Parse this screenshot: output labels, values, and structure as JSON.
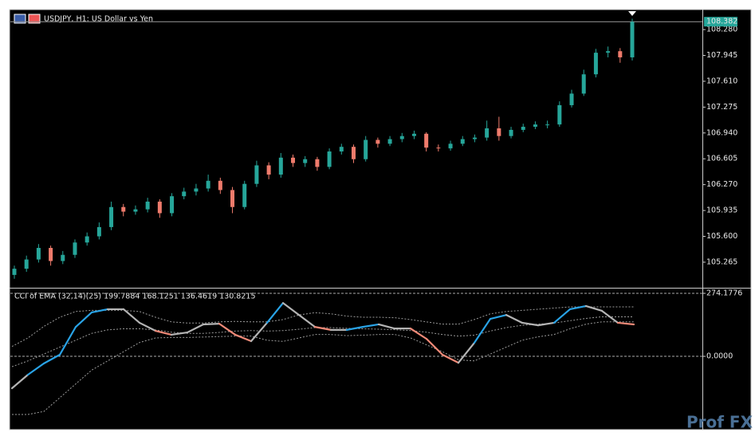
{
  "chart_data": [
    {
      "type": "candlestick",
      "title": "USDJPY, H1:  US Dollar vs Yen",
      "open": [
        105.1,
        105.18,
        105.3,
        105.45,
        105.28,
        105.36,
        105.52,
        105.6,
        105.72,
        105.98,
        105.92,
        105.95,
        106.05,
        105.9,
        106.12,
        106.18,
        106.22,
        106.32,
        106.2,
        105.98,
        106.28,
        106.52,
        106.4,
        106.62,
        106.55,
        106.6,
        106.5,
        106.7,
        106.76,
        106.6,
        106.85,
        106.8,
        106.86,
        106.9,
        106.93,
        106.75,
        106.74,
        106.8,
        106.86,
        106.88,
        107.0,
        106.9,
        106.98,
        107.02,
        107.05,
        107.05,
        107.3,
        107.45,
        107.7,
        107.98,
        108.0,
        107.92
      ],
      "high": [
        105.22,
        105.35,
        105.5,
        105.48,
        105.41,
        105.56,
        105.65,
        105.78,
        106.05,
        106.02,
        106.0,
        106.1,
        106.08,
        106.16,
        106.23,
        106.28,
        106.4,
        106.36,
        106.24,
        106.32,
        106.58,
        106.56,
        106.68,
        106.66,
        106.64,
        106.63,
        106.74,
        106.8,
        106.79,
        106.9,
        106.88,
        106.9,
        106.94,
        106.97,
        106.95,
        106.79,
        106.84,
        106.9,
        106.92,
        107.1,
        107.15,
        107.02,
        107.06,
        107.09,
        107.1,
        107.35,
        107.5,
        107.76,
        108.03,
        108.06,
        108.04,
        108.42
      ],
      "low": [
        105.05,
        105.14,
        105.26,
        105.22,
        105.24,
        105.32,
        105.48,
        105.56,
        105.68,
        105.86,
        105.88,
        105.91,
        105.84,
        105.86,
        106.08,
        106.13,
        106.18,
        106.15,
        105.9,
        105.95,
        106.24,
        106.34,
        106.36,
        106.5,
        106.5,
        106.45,
        106.47,
        106.66,
        106.55,
        106.57,
        106.75,
        106.77,
        106.82,
        106.86,
        106.7,
        106.7,
        106.71,
        106.77,
        106.82,
        106.84,
        106.84,
        106.87,
        106.95,
        106.99,
        107.0,
        107.02,
        107.27,
        107.42,
        107.66,
        107.92,
        107.85,
        107.88
      ],
      "close": [
        105.18,
        105.3,
        105.45,
        105.28,
        105.36,
        105.52,
        105.6,
        105.72,
        105.98,
        105.92,
        105.95,
        106.05,
        105.9,
        106.12,
        106.18,
        106.22,
        106.32,
        106.2,
        105.98,
        106.28,
        106.52,
        106.4,
        106.62,
        106.55,
        106.6,
        106.5,
        106.7,
        106.76,
        106.6,
        106.85,
        106.8,
        106.86,
        106.9,
        106.93,
        106.75,
        106.74,
        106.8,
        106.86,
        106.88,
        107.0,
        106.9,
        106.98,
        107.02,
        107.05,
        107.05,
        107.3,
        107.45,
        107.7,
        107.98,
        108.0,
        107.92,
        108.38
      ],
      "up_color": "#26a69a",
      "down_color": "#ef7b6c",
      "ylim": [
        104.944,
        108.529
      ],
      "yticks": [
        {
          "value": 108.28,
          "label": "108.280"
        },
        107.945,
        {
          "value": 107.61,
          "label": "107.610"
        },
        107.275,
        {
          "value": 106.94,
          "label": "106.940"
        },
        106.605,
        {
          "value": 106.27,
          "label": "106.270"
        },
        105.935,
        {
          "value": 105.6,
          "label": "105.600"
        },
        105.265
      ],
      "last_price": 108.382
    },
    {
      "type": "line",
      "title": "CCI of EMA (32,14)(25) 199.7884 168.1251 136.4619 130.8215",
      "ylim": [
        -312,
        291.5
      ],
      "yticks": [
        274.1776,
        {
          "value": 0,
          "label": "0.0000"
        }
      ],
      "watermark": "Prof FX",
      "series": [
        {
          "color": "#9a9a9a",
          "dashed": true,
          "values": [
            43,
            80,
            130,
            170,
            195,
            200,
            200,
            200,
            195,
            170,
            150,
            145,
            145,
            150,
            152,
            150,
            150,
            160,
            180,
            190,
            185,
            175,
            170,
            170,
            168,
            160,
            150,
            140,
            140,
            160,
            185,
            195,
            200,
            205,
            210,
            215,
            215,
            215,
            215,
            215
          ]
        },
        {
          "color": "#9a9a9a",
          "dashed": true,
          "values": [
            -45,
            -20,
            10,
            40,
            70,
            100,
            115,
            120,
            120,
            115,
            105,
            100,
            100,
            104,
            110,
            112,
            110,
            112,
            118,
            125,
            125,
            122,
            120,
            118,
            116,
            112,
            105,
            95,
            88,
            92,
            110,
            125,
            135,
            140,
            145,
            155,
            165,
            172,
            172,
            172
          ]
        },
        {
          "color": "#9a9a9a",
          "dashed": true,
          "values": [
            -253,
            -253,
            -240,
            -180,
            -120,
            -60,
            -20,
            20,
            60,
            80,
            82,
            82,
            84,
            86,
            88,
            88,
            70,
            65,
            80,
            95,
            95,
            90,
            92,
            95,
            95,
            80,
            50,
            20,
            -15,
            -20,
            10,
            40,
            70,
            85,
            95,
            120,
            140,
            150,
            150,
            150
          ]
        },
        {
          "color": "#b4b4b4",
          "dashed": false,
          "values": [
            -139,
            -80,
            -31,
            7,
            128,
            191,
            205,
            205,
            146,
            111,
            94,
            104,
            139,
            142,
            94,
            66,
            146,
            232,
            180,
            128,
            115,
            115,
            128,
            139,
            121,
            121,
            76,
            7,
            -28,
            59,
            163,
            180,
            146,
            135,
            146,
            205,
            219,
            198,
            146,
            139
          ],
          "colors": [
            "#b4b4b4",
            "#b4b4b4",
            "#29a3e6",
            "#29a3e6",
            "#29a3e6",
            "#29a3e6",
            "#29a3e6",
            "#b4b4b4",
            "#b4b4b4",
            "#b4b4b4",
            "#f08a78",
            "#b4b4b4",
            "#b4b4b4",
            "#b4b4b4",
            "#f08a78",
            "#f08a78",
            "#b4b4b4",
            "#29a3e6",
            "#b4b4b4",
            "#b4b4b4",
            "#f08a78",
            "#b4b4b4",
            "#29a3e6",
            "#29a3e6",
            "#b4b4b4",
            "#b4b4b4",
            "#f08a78",
            "#f08a78",
            "#f08a78",
            "#b4b4b4",
            "#29a3e6",
            "#29a3e6",
            "#b4b4b4",
            "#b4b4b4",
            "#b4b4b4",
            "#29a3e6",
            "#29a3e6",
            "#b4b4b4",
            "#b4b4b4",
            "#f08a78"
          ]
        }
      ]
    }
  ]
}
